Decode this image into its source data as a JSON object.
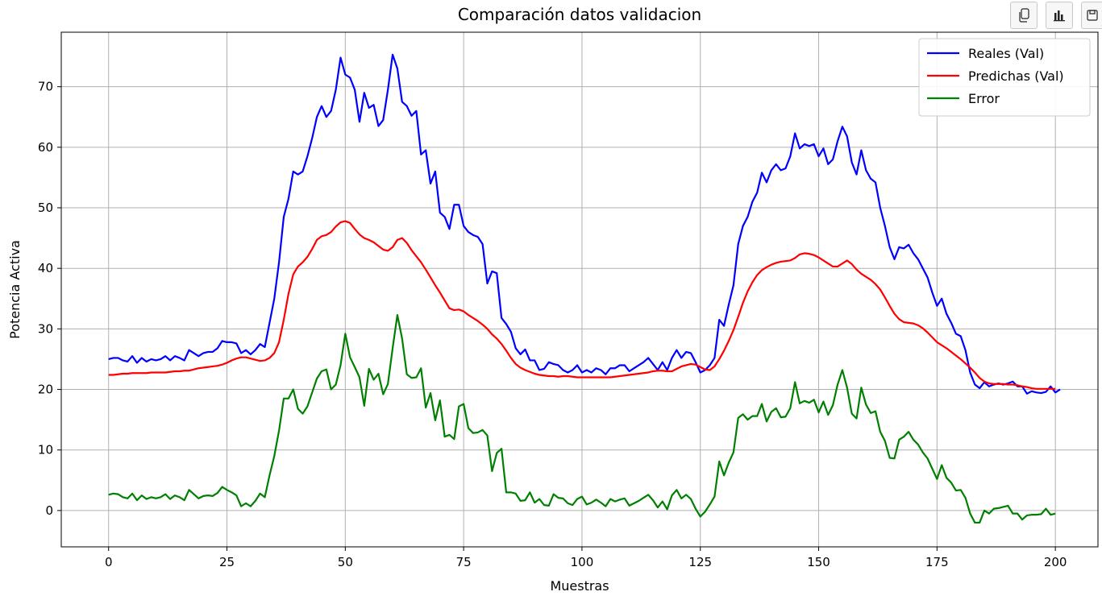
{
  "toolbar": {
    "buttons": [
      {
        "icon": "copy-icon"
      },
      {
        "icon": "bar-chart-icon"
      },
      {
        "icon": "save-icon"
      }
    ]
  },
  "chart_data": {
    "type": "line",
    "title": "Comparación datos validacion",
    "xlabel": "Muestras",
    "ylabel": "Potencia Activa",
    "xlim": [
      -10,
      209
    ],
    "ylim": [
      -6,
      79
    ],
    "xticks": [
      0,
      25,
      50,
      75,
      100,
      125,
      150,
      175,
      200
    ],
    "yticks": [
      0,
      10,
      20,
      30,
      40,
      50,
      60,
      70
    ],
    "grid": true,
    "legend_position": "top-right",
    "x_start": 0,
    "series": [
      {
        "name": "Reales (Val)",
        "color": "#0000ff",
        "values": [
          25,
          25.2,
          25.2,
          24.8,
          24.6,
          25.5,
          24.4,
          25.2,
          24.6,
          25,
          24.8,
          25,
          25.5,
          24.8,
          25.5,
          25.2,
          24.8,
          26.5,
          26,
          25.5,
          26,
          26.2,
          26.2,
          26.8,
          28,
          27.8,
          27.8,
          27.6,
          26,
          26.5,
          25.8,
          26.5,
          27.5,
          27,
          31,
          35,
          41,
          48.5,
          51.5,
          56,
          55.5,
          56,
          58.5,
          61.5,
          65,
          66.8,
          65,
          66,
          69.5,
          74.8,
          72,
          71.5,
          69.5,
          64.2,
          69,
          66.5,
          67,
          63.5,
          64.5,
          69.5,
          75.3,
          73,
          67.5,
          66.8,
          65.2,
          66,
          58.8,
          59.5,
          54,
          56,
          49.2,
          48.5,
          46.5,
          50.5,
          50.5,
          47,
          46,
          45.5,
          45.2,
          44,
          37.5,
          39.5,
          39.2,
          31.8,
          30.8,
          29.5,
          26.8,
          25.8,
          26.6,
          24.8,
          24.8,
          23.2,
          23.4,
          24.5,
          24.2,
          24,
          23.2,
          22.8,
          23.2,
          24,
          22.8,
          23.2,
          22.8,
          23.5,
          23.2,
          22.5,
          23.5,
          23.5,
          24,
          24,
          23,
          23.5,
          24,
          24.5,
          25.2,
          24.2,
          23.2,
          24.5,
          23.2,
          25.2,
          26.5,
          25.2,
          26.2,
          26,
          24.5,
          22.8,
          23.2,
          24,
          25.2,
          31.5,
          30.5,
          34,
          37.2,
          44,
          47,
          48.5,
          51,
          52.5,
          55.8,
          54.2,
          56.2,
          57.2,
          56.2,
          56.5,
          58.5,
          62.3,
          59.8,
          60.5,
          60.2,
          60.5,
          58.5,
          59.8,
          57.2,
          58,
          61,
          63.4,
          61.8,
          57.5,
          55.5,
          59.5,
          56.2,
          54.8,
          54.2,
          50,
          47,
          43.5,
          41.5,
          43.5,
          43.3,
          43.9,
          42.5,
          41.5,
          40,
          38.5,
          36,
          33.8,
          35,
          32.5,
          31,
          29.2,
          28.8,
          26.5,
          22.8,
          20.8,
          20.2,
          21.2,
          20.5,
          20.8,
          21,
          20.8,
          21,
          21.3,
          20.5,
          20.5,
          19.3,
          19.7,
          19.5,
          19.4,
          19.6,
          20.5,
          19.5,
          20
        ]
      },
      {
        "name": "Predichas (Val)",
        "color": "#ff0000",
        "values": [
          22.4,
          22.4,
          22.5,
          22.6,
          22.6,
          22.7,
          22.7,
          22.7,
          22.7,
          22.8,
          22.8,
          22.8,
          22.8,
          22.9,
          23,
          23,
          23.1,
          23.1,
          23.3,
          23.5,
          23.6,
          23.7,
          23.8,
          23.9,
          24.1,
          24.4,
          24.8,
          25.1,
          25.3,
          25.3,
          25.1,
          24.9,
          24.7,
          24.8,
          25.2,
          26,
          27.8,
          31.5,
          35.8,
          39,
          40.3,
          41,
          41.9,
          43.2,
          44.7,
          45.3,
          45.5,
          46,
          46.9,
          47.6,
          47.8,
          47.5,
          46.5,
          45.6,
          45,
          44.7,
          44.3,
          43.7,
          43.1,
          42.9,
          43.5,
          44.7,
          45,
          44.2,
          43,
          42,
          41,
          39.8,
          38.5,
          37.2,
          36,
          34.7,
          33.4,
          33.1,
          33.2,
          32.9,
          32.3,
          31.8,
          31.3,
          30.7,
          30,
          29.1,
          28.4,
          27.5,
          26.4,
          25.2,
          24.2,
          23.6,
          23.2,
          22.9,
          22.6,
          22.4,
          22.3,
          22.2,
          22.2,
          22.1,
          22.2,
          22.2,
          22.1,
          22,
          22,
          22,
          22,
          22,
          22,
          22,
          22,
          22.1,
          22.2,
          22.3,
          22.4,
          22.5,
          22.6,
          22.7,
          22.8,
          23,
          23.1,
          23.1,
          23,
          23,
          23.4,
          23.8,
          24,
          24.2,
          24.1,
          23.7,
          23.3,
          23.2,
          23.8,
          25,
          26.4,
          28,
          29.8,
          32,
          34.3,
          36.2,
          37.7,
          38.9,
          39.7,
          40.2,
          40.6,
          40.9,
          41.1,
          41.2,
          41.3,
          41.7,
          42.3,
          42.5,
          42.4,
          42.2,
          41.8,
          41.3,
          40.8,
          40.3,
          40.3,
          40.8,
          41.3,
          40.7,
          39.8,
          39.1,
          38.6,
          38.1,
          37.4,
          36.5,
          35.2,
          33.8,
          32.5,
          31.6,
          31.1,
          31,
          30.9,
          30.6,
          30.1,
          29.4,
          28.6,
          27.8,
          27.3,
          26.8,
          26.2,
          25.6,
          25,
          24.3,
          23.6,
          22.8,
          21.9,
          21.3,
          21,
          20.9,
          20.9,
          20.9,
          20.8,
          20.8,
          20.7,
          20.5,
          20.4,
          20.2,
          20.1,
          20.1,
          20.1,
          20.1,
          20.1
        ]
      },
      {
        "name": "Error",
        "color": "#008000",
        "values": [
          2.6,
          2.8,
          2.7,
          2.2,
          2,
          2.8,
          1.7,
          2.5,
          1.9,
          2.2,
          2,
          2.2,
          2.7,
          1.9,
          2.5,
          2.2,
          1.7,
          3.4,
          2.7,
          2,
          2.4,
          2.5,
          2.4,
          2.9,
          3.9,
          3.4,
          3,
          2.5,
          0.7,
          1.2,
          0.7,
          1.6,
          2.8,
          2.2,
          5.8,
          9,
          13.2,
          18.5,
          18.5,
          20,
          16.8,
          16,
          17.2,
          19.5,
          21.8,
          23,
          23.3,
          20,
          20.8,
          24,
          29.2,
          25.3,
          23.7,
          22,
          17.3,
          23.4,
          21.6,
          22.6,
          19.2,
          20.9,
          26.8,
          32.3,
          28.4,
          22.5,
          21.9,
          22,
          23.5,
          17,
          19.4,
          14.9,
          18.2,
          12.2,
          12.5,
          11.8,
          17.2,
          17.6,
          13.6,
          12.8,
          12.9,
          13.3,
          12.4,
          6.5,
          9.5,
          10.2,
          3,
          3,
          2.8,
          1.6,
          1.7,
          3,
          1.3,
          1.9,
          0.9,
          0.8,
          2.7,
          2.1,
          2,
          1.2,
          0.9,
          1.9,
          2.3,
          1,
          1.3,
          1.8,
          1.3,
          0.7,
          1.9,
          1.5,
          1.8,
          2,
          0.8,
          1.2,
          1.6,
          2.1,
          2.6,
          1.7,
          0.5,
          1.5,
          0.2,
          2.5,
          3.4,
          2,
          2.6,
          1.9,
          0.3,
          -1,
          -0.2,
          1,
          2.3,
          8.1,
          5.8,
          7.9,
          9.6,
          15.3,
          15.9,
          15,
          15.6,
          15.6,
          17.6,
          14.7,
          16.3,
          16.9,
          15.4,
          15.5,
          16.9,
          21.2,
          17.7,
          18.1,
          17.8,
          18.3,
          16.2,
          18,
          15.8,
          17.4,
          20.8,
          23.2,
          20.3,
          16,
          15.2,
          20.3,
          17.5,
          16.1,
          16.4,
          13,
          11.5,
          8.7,
          8.6,
          11.7,
          12.2,
          13,
          11.7,
          10.9,
          9.6,
          8.6,
          6.9,
          5.2,
          7.5,
          5.4,
          4.6,
          3.3,
          3.4,
          2.1,
          -0.5,
          -2,
          -2,
          0,
          -0.5,
          0.3,
          0.4,
          0.6,
          0.8,
          -0.5,
          -0.5,
          -1.5,
          -0.8,
          -0.7,
          -0.7,
          -0.6,
          0.3,
          -0.7,
          -0.5
        ]
      }
    ]
  }
}
